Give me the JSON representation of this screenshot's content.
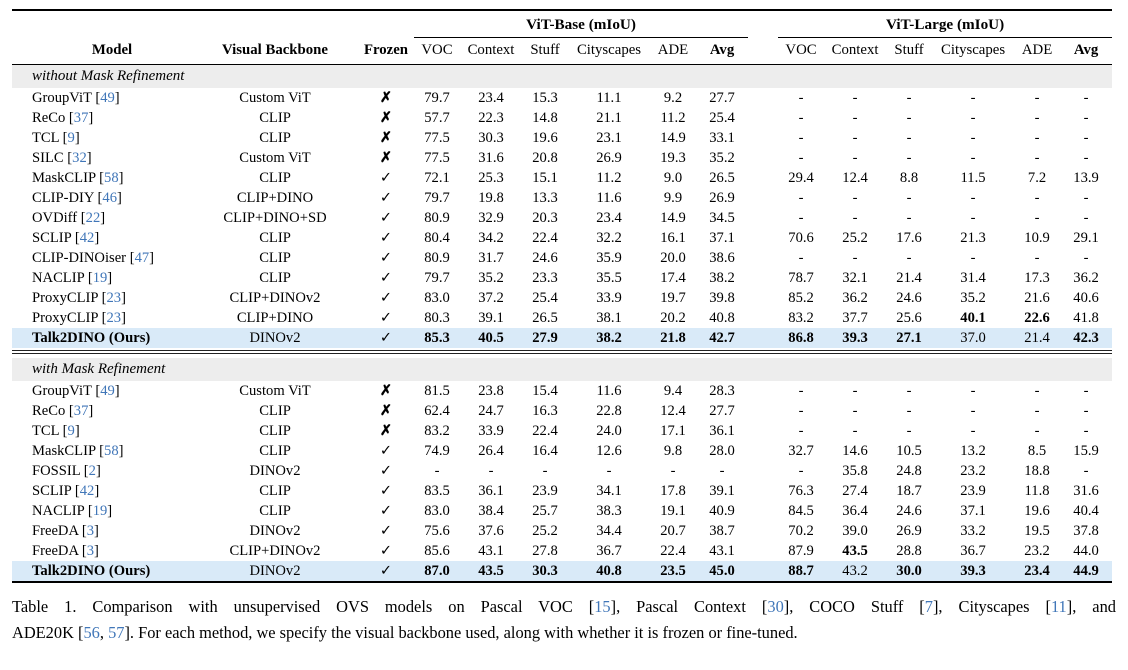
{
  "table": {
    "group_headers": {
      "base": "ViT-Base (mIoU)",
      "large": "ViT-Large (mIoU)"
    },
    "col_headers": {
      "model": "Model",
      "backbone": "Visual Backbone",
      "frozen": "Frozen",
      "metrics": [
        "VOC",
        "Context",
        "Stuff",
        "Cityscapes",
        "ADE",
        "Avg"
      ]
    },
    "symbols": {
      "frozen_yes": "✓",
      "frozen_no": "✗"
    },
    "colors": {
      "highlight": "#d9eaf8",
      "section_bg": "#ededed",
      "citation": "#4076b8"
    },
    "sections": [
      {
        "label": "without Mask Refinement",
        "rows": [
          {
            "model": "GroupViT",
            "cite": "49",
            "backbone": "Custom ViT",
            "frozen": false,
            "base": [
              "79.7",
              "23.4",
              "15.3",
              "11.1",
              "9.2",
              "27.7"
            ],
            "large": [
              "-",
              "-",
              "-",
              "-",
              "-",
              "-"
            ]
          },
          {
            "model": "ReCo",
            "cite": "37",
            "backbone": "CLIP",
            "frozen": false,
            "base": [
              "57.7",
              "22.3",
              "14.8",
              "21.1",
              "11.2",
              "25.4"
            ],
            "large": [
              "-",
              "-",
              "-",
              "-",
              "-",
              "-"
            ]
          },
          {
            "model": "TCL",
            "cite": "9",
            "backbone": "CLIP",
            "frozen": false,
            "base": [
              "77.5",
              "30.3",
              "19.6",
              "23.1",
              "14.9",
              "33.1"
            ],
            "large": [
              "-",
              "-",
              "-",
              "-",
              "-",
              "-"
            ]
          },
          {
            "model": "SILC",
            "cite": "32",
            "backbone": "Custom ViT",
            "frozen": false,
            "base": [
              "77.5",
              "31.6",
              "20.8",
              "26.9",
              "19.3",
              "35.2"
            ],
            "large": [
              "-",
              "-",
              "-",
              "-",
              "-",
              "-"
            ]
          },
          {
            "model": "MaskCLIP",
            "cite": "58",
            "backbone": "CLIP",
            "frozen": true,
            "base": [
              "72.1",
              "25.3",
              "15.1",
              "11.2",
              "9.0",
              "26.5"
            ],
            "large": [
              "29.4",
              "12.4",
              "8.8",
              "11.5",
              "7.2",
              "13.9"
            ]
          },
          {
            "model": "CLIP-DIY",
            "cite": "46",
            "backbone": "CLIP+DINO",
            "frozen": true,
            "base": [
              "79.7",
              "19.8",
              "13.3",
              "11.6",
              "9.9",
              "26.9"
            ],
            "large": [
              "-",
              "-",
              "-",
              "-",
              "-",
              "-"
            ]
          },
          {
            "model": "OVDiff",
            "cite": "22",
            "backbone": "CLIP+DINO+SD",
            "frozen": true,
            "base": [
              "80.9",
              "32.9",
              "20.3",
              "23.4",
              "14.9",
              "34.5"
            ],
            "large": [
              "-",
              "-",
              "-",
              "-",
              "-",
              "-"
            ]
          },
          {
            "model": "SCLIP",
            "cite": "42",
            "backbone": "CLIP",
            "frozen": true,
            "base": [
              "80.4",
              "34.2",
              "22.4",
              "32.2",
              "16.1",
              "37.1"
            ],
            "large": [
              "70.6",
              "25.2",
              "17.6",
              "21.3",
              "10.9",
              "29.1"
            ]
          },
          {
            "model": "CLIP-DINOiser",
            "cite": "47",
            "backbone": "CLIP",
            "frozen": true,
            "base": [
              "80.9",
              "31.7",
              "24.6",
              "35.9",
              "20.0",
              "38.6"
            ],
            "large": [
              "-",
              "-",
              "-",
              "-",
              "-",
              "-"
            ]
          },
          {
            "model": "NACLIP",
            "cite": "19",
            "backbone": "CLIP",
            "frozen": true,
            "base": [
              "79.7",
              "35.2",
              "23.3",
              "35.5",
              "17.4",
              "38.2"
            ],
            "large": [
              "78.7",
              "32.1",
              "21.4",
              "31.4",
              "17.3",
              "36.2"
            ]
          },
          {
            "model": "ProxyCLIP",
            "cite": "23",
            "backbone": "CLIP+DINOv2",
            "frozen": true,
            "base": [
              "83.0",
              "37.2",
              "25.4",
              "33.9",
              "19.7",
              "39.8"
            ],
            "large": [
              "85.2",
              "36.2",
              "24.6",
              "35.2",
              "21.6",
              "40.6"
            ]
          },
          {
            "model": "ProxyCLIP",
            "cite": "23",
            "backbone": "CLIP+DINO",
            "frozen": true,
            "base": [
              "80.3",
              "39.1",
              "26.5",
              "38.1",
              "20.2",
              "40.8"
            ],
            "large": [
              "83.2",
              "37.7",
              "25.6",
              "40.1",
              "22.6",
              "41.8"
            ],
            "large_bold": [
              false,
              false,
              false,
              true,
              true,
              false
            ]
          },
          {
            "model": "Talk2DINO (Ours)",
            "cite": null,
            "backbone": "DINOv2",
            "frozen": true,
            "highlight": true,
            "base": [
              "85.3",
              "40.5",
              "27.9",
              "38.2",
              "21.8",
              "42.7"
            ],
            "base_bold": [
              true,
              true,
              true,
              true,
              true,
              true
            ],
            "large": [
              "86.8",
              "39.3",
              "27.1",
              "37.0",
              "21.4",
              "42.3"
            ],
            "large_bold": [
              true,
              true,
              true,
              false,
              false,
              true
            ]
          }
        ]
      },
      {
        "label": "with Mask Refinement",
        "rows": [
          {
            "model": "GroupViT",
            "cite": "49",
            "backbone": "Custom ViT",
            "frozen": false,
            "base": [
              "81.5",
              "23.8",
              "15.4",
              "11.6",
              "9.4",
              "28.3"
            ],
            "large": [
              "-",
              "-",
              "-",
              "-",
              "-",
              "-"
            ]
          },
          {
            "model": "ReCo",
            "cite": "37",
            "backbone": "CLIP",
            "frozen": false,
            "base": [
              "62.4",
              "24.7",
              "16.3",
              "22.8",
              "12.4",
              "27.7"
            ],
            "large": [
              "-",
              "-",
              "-",
              "-",
              "-",
              "-"
            ]
          },
          {
            "model": "TCL",
            "cite": "9",
            "backbone": "CLIP",
            "frozen": false,
            "base": [
              "83.2",
              "33.9",
              "22.4",
              "24.0",
              "17.1",
              "36.1"
            ],
            "large": [
              "-",
              "-",
              "-",
              "-",
              "-",
              "-"
            ]
          },
          {
            "model": "MaskCLIP",
            "cite": "58",
            "backbone": "CLIP",
            "frozen": true,
            "base": [
              "74.9",
              "26.4",
              "16.4",
              "12.6",
              "9.8",
              "28.0"
            ],
            "large": [
              "32.7",
              "14.6",
              "10.5",
              "13.2",
              "8.5",
              "15.9"
            ]
          },
          {
            "model": "FOSSIL",
            "cite": "2",
            "backbone": "DINOv2",
            "frozen": true,
            "base": [
              "-",
              "-",
              "-",
              "-",
              "-",
              "-"
            ],
            "large": [
              "-",
              "35.8",
              "24.8",
              "23.2",
              "18.8",
              "-"
            ]
          },
          {
            "model": "SCLIP",
            "cite": "42",
            "backbone": "CLIP",
            "frozen": true,
            "base": [
              "83.5",
              "36.1",
              "23.9",
              "34.1",
              "17.8",
              "39.1"
            ],
            "large": [
              "76.3",
              "27.4",
              "18.7",
              "23.9",
              "11.8",
              "31.6"
            ]
          },
          {
            "model": "NACLIP",
            "cite": "19",
            "backbone": "CLIP",
            "frozen": true,
            "base": [
              "83.0",
              "38.4",
              "25.7",
              "38.3",
              "19.1",
              "40.9"
            ],
            "large": [
              "84.5",
              "36.4",
              "24.6",
              "37.1",
              "19.6",
              "40.4"
            ]
          },
          {
            "model": "FreeDA",
            "cite": "3",
            "backbone": "DINOv2",
            "frozen": true,
            "base": [
              "75.6",
              "37.6",
              "25.2",
              "34.4",
              "20.7",
              "38.7"
            ],
            "large": [
              "70.2",
              "39.0",
              "26.9",
              "33.2",
              "19.5",
              "37.8"
            ]
          },
          {
            "model": "FreeDA",
            "cite": "3",
            "backbone": "CLIP+DINOv2",
            "frozen": true,
            "base": [
              "85.6",
              "43.1",
              "27.8",
              "36.7",
              "22.4",
              "43.1"
            ],
            "large": [
              "87.9",
              "43.5",
              "28.8",
              "36.7",
              "23.2",
              "44.0"
            ],
            "large_bold": [
              false,
              true,
              false,
              false,
              false,
              false
            ]
          },
          {
            "model": "Talk2DINO (Ours)",
            "cite": null,
            "backbone": "DINOv2",
            "frozen": true,
            "highlight": true,
            "base": [
              "87.0",
              "43.5",
              "30.3",
              "40.8",
              "23.5",
              "45.0"
            ],
            "base_bold": [
              true,
              true,
              true,
              true,
              true,
              true
            ],
            "large": [
              "88.7",
              "43.2",
              "30.0",
              "39.3",
              "23.4",
              "44.9"
            ],
            "large_bold": [
              true,
              false,
              true,
              true,
              true,
              true
            ]
          }
        ]
      }
    ]
  },
  "caption": {
    "line1": [
      {
        "t": "Table 1.  Comparison with unsupervised OVS models on Pascal VOC ["
      },
      {
        "c": "15"
      },
      {
        "t": "], Pascal Context ["
      },
      {
        "c": "30"
      },
      {
        "t": "], COCO Stuff ["
      },
      {
        "c": "7"
      },
      {
        "t": "], Cityscapes ["
      },
      {
        "c": "11"
      },
      {
        "t": "], and"
      }
    ],
    "line2": [
      {
        "t": "ADE20K ["
      },
      {
        "c": "56"
      },
      {
        "t": ", "
      },
      {
        "c": "57"
      },
      {
        "t": "]. For each method, we specify the visual backbone used, along with whether it is frozen or fine-tuned."
      }
    ]
  }
}
